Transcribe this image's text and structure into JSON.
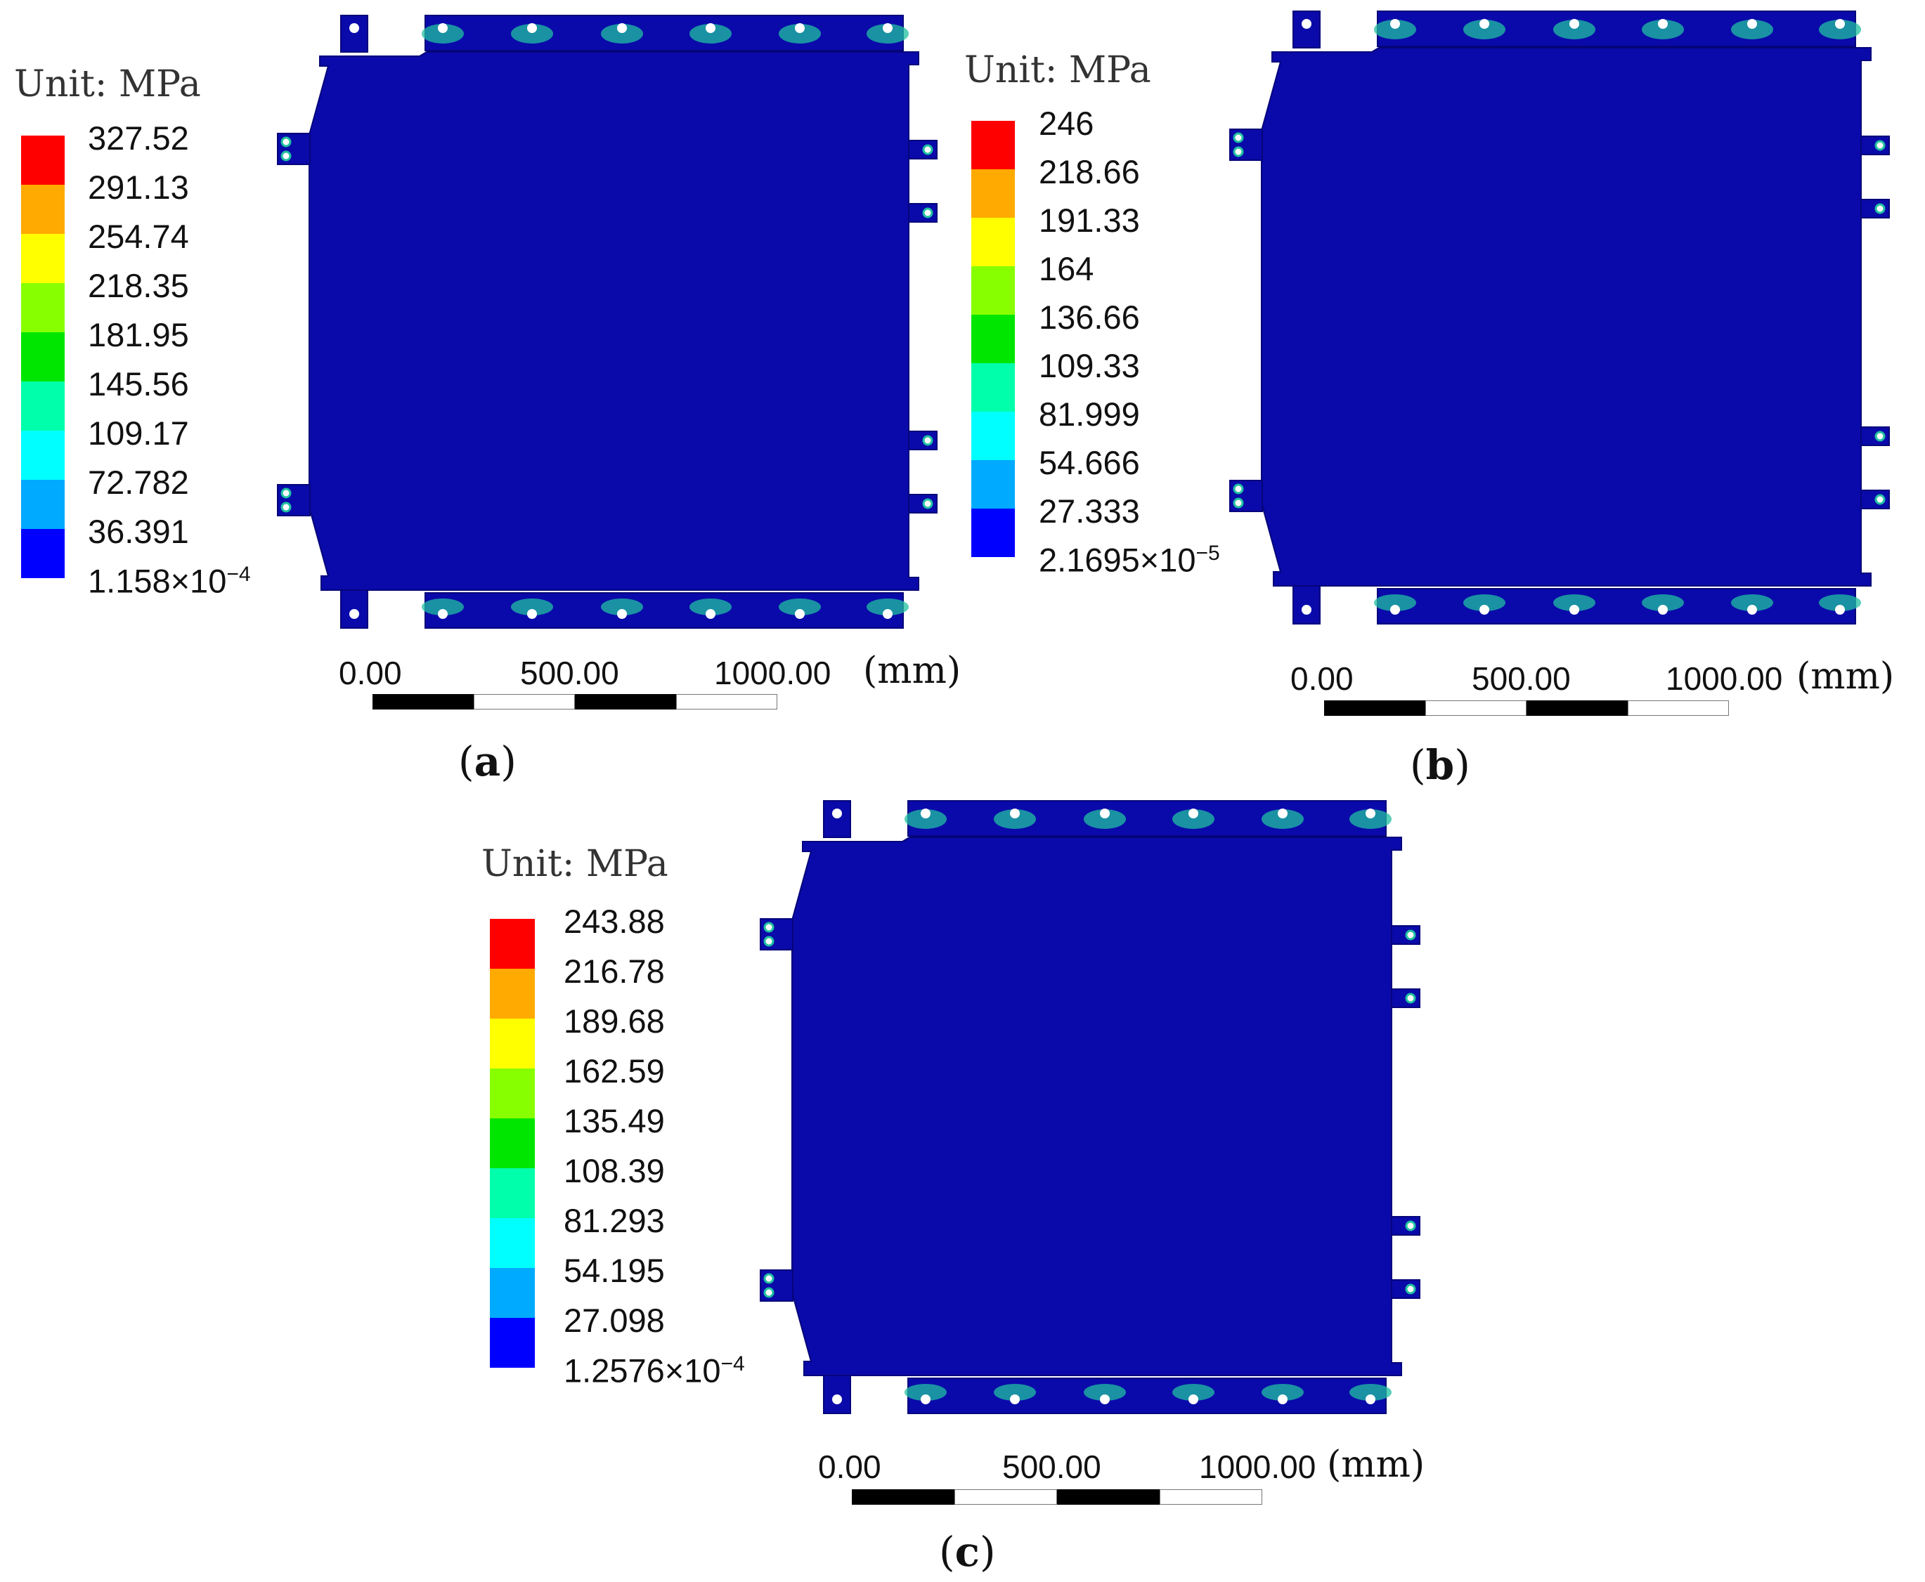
{
  "colors": {
    "plate": "#0A0AAA",
    "plate_edge": "#05057A",
    "bolt": "#FFFFFF",
    "stress_hotspot": "#20C0A0",
    "legend_bands": [
      "#FF0000",
      "#FFAA00",
      "#FFFF00",
      "#88FF00",
      "#00E600",
      "#00FFAA",
      "#00FFFF",
      "#00AAFF",
      "#0000FF"
    ]
  },
  "panels": [
    {
      "label": "a",
      "legend_unit": "Unit: MPa",
      "legend_values": [
        "327.52",
        "291.13",
        "254.74",
        "218.35",
        "181.95",
        "145.56",
        "109.17",
        "72.782",
        "36.391"
      ],
      "legend_min": "1.158×10",
      "legend_min_exp": "−4",
      "scale_ticks": [
        "0.00",
        "500.00",
        "1000.00"
      ],
      "scale_unit": "(mm)"
    },
    {
      "label": "b",
      "legend_unit": "Unit: MPa",
      "legend_values": [
        "246",
        "218.66",
        "191.33",
        "164",
        "136.66",
        "109.33",
        "81.999",
        "54.666",
        "27.333"
      ],
      "legend_min": "2.1695×10",
      "legend_min_exp": "−5",
      "scale_ticks": [
        "0.00",
        "500.00",
        "1000.00"
      ],
      "scale_unit": "(mm)"
    },
    {
      "label": "c",
      "legend_unit": "Unit: MPa",
      "legend_values": [
        "243.88",
        "216.78",
        "189.68",
        "162.59",
        "135.49",
        "108.39",
        "81.293",
        "54.195",
        "27.098"
      ],
      "legend_min": "1.2576×10",
      "legend_min_exp": "−4",
      "scale_ticks": [
        "0.00",
        "500.00",
        "1000.00"
      ],
      "scale_unit": "(mm)"
    }
  ]
}
